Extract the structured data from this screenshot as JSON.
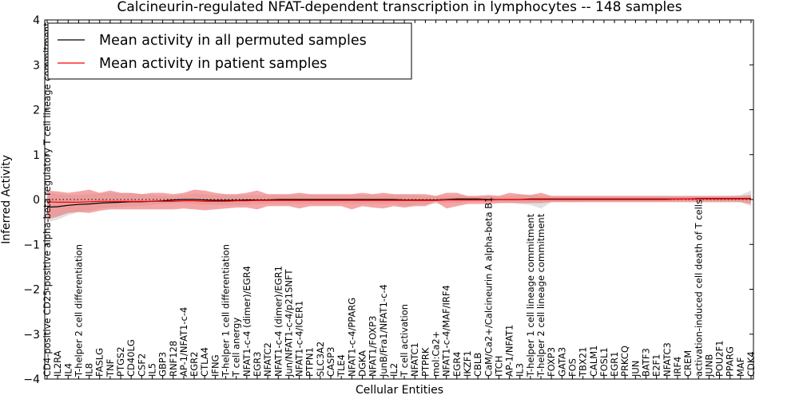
{
  "chart_data": {
    "type": "line",
    "title": "Calcineurin-regulated NFAT-dependent transcription in lymphocytes -- 148 samples",
    "xlabel": "Cellular Entities",
    "ylabel": "Inferred Activity",
    "ylim": [
      -4,
      4
    ],
    "yticks": [
      -4,
      -3,
      -2,
      -1,
      0,
      1,
      2,
      3,
      4
    ],
    "legend_position": "top-left",
    "categories": [
      "CD4-positive CD25-positive alpha-beta regulatory T cell lineage commitment",
      "IL2RA",
      "IL4",
      "T-helper 2 cell differentiation",
      "IL8",
      "FASLG",
      "TNF",
      "PTGS2",
      "CD40LG",
      "CSF2",
      "IL5",
      "GBP3",
      "RNF128",
      "AP-1/NFAT1-c-4",
      "EGR2",
      "CTLA4",
      "IFNG",
      "T-helper 1 cell differentiation",
      "T cell anergy",
      "NFAT1-c-4 (dimer)/EGR4",
      "EGR3",
      "NFATC2",
      "NFAT1-c-4 (dimer)/EGR1",
      "Jun/NFAT1-c-4/p21SNFT",
      "NFAT1-c-4/ICER1",
      "PTPN1",
      "SLC3A2",
      "CASP3",
      "TLE4",
      "NFAT1-c-4/PPARG",
      "DGKA",
      "NFAT1/FOXP3",
      "JunB/Fra1/NFAT1-c-4",
      "IL2",
      "T cell activation",
      "NFATC1",
      "PTPRK",
      "mol:Ca2+",
      "NFAT1-c-4/MAF/IRF4",
      "EGR4",
      "IKZF1",
      "CBLB",
      "CaM/Ca2+/Calcineurin A alpha-beta B1",
      "ITCH",
      "AP-1/NFAT1",
      "IL3",
      "T-helper 1 cell lineage commitment",
      "T-helper 2 cell lineage commitment",
      "FOXP3",
      "GATA3",
      "FOS",
      "TBX21",
      "CALM1",
      "FOSL1",
      "EGR1",
      "PRKCQ",
      "JUN",
      "BATF3",
      "E2F1",
      "NFATC3",
      "IRF4",
      "CREM",
      "activation-induced cell death of T cells",
      "JUNB",
      "POU2F1",
      "PPARG",
      "MAF",
      "CDK4"
    ],
    "series": [
      {
        "name": "Mean activity in all permuted samples",
        "color": "#000000",
        "band_color": "#d9d9d9",
        "values": [
          -0.17,
          -0.16,
          -0.13,
          -0.11,
          -0.1,
          -0.08,
          -0.07,
          -0.06,
          -0.05,
          -0.05,
          -0.04,
          -0.03,
          -0.01,
          0.0,
          0.0,
          -0.01,
          -0.02,
          -0.02,
          -0.02,
          -0.01,
          -0.01,
          -0.01,
          0.0,
          0.0,
          0.0,
          0.0,
          0.0,
          0.0,
          0.0,
          0.0,
          0.0,
          0.0,
          0.0,
          0.0,
          -0.01,
          -0.01,
          -0.01,
          -0.01,
          0.0,
          0.01,
          0.01,
          0.01,
          0.0,
          0.0,
          0.0,
          0.0,
          0.01,
          0.01,
          0.01,
          0.01,
          0.01,
          0.01,
          0.01,
          0.01,
          0.01,
          0.01,
          0.01,
          0.01,
          0.01,
          0.01,
          0.01,
          0.01,
          0.02,
          0.02,
          0.02,
          0.02,
          0.02,
          0.02
        ],
        "lower": [
          -0.5,
          -0.45,
          -0.35,
          -0.28,
          -0.25,
          -0.2,
          -0.18,
          -0.16,
          -0.15,
          -0.14,
          -0.12,
          -0.1,
          -0.08,
          -0.08,
          -0.1,
          -0.12,
          -0.12,
          -0.13,
          -0.13,
          -0.12,
          -0.1,
          -0.1,
          -0.1,
          -0.1,
          -0.1,
          -0.1,
          -0.1,
          -0.1,
          -0.1,
          -0.1,
          -0.1,
          -0.1,
          -0.1,
          -0.1,
          -0.15,
          -0.12,
          -0.1,
          -0.1,
          -0.08,
          -0.08,
          -0.06,
          -0.05,
          -0.06,
          -0.08,
          -0.07,
          -0.1,
          -0.12,
          -0.2,
          -0.06,
          -0.05,
          -0.06,
          -0.05,
          -0.05,
          -0.05,
          -0.05,
          -0.05,
          -0.05,
          -0.05,
          -0.05,
          -0.05,
          -0.05,
          -0.05,
          -0.05,
          -0.05,
          -0.05,
          -0.05,
          -0.06,
          -0.15
        ],
        "upper": [
          0.15,
          0.12,
          0.1,
          0.1,
          0.12,
          0.14,
          0.15,
          0.14,
          0.14,
          0.12,
          0.1,
          0.08,
          0.08,
          0.1,
          0.13,
          0.12,
          0.1,
          0.1,
          0.1,
          0.1,
          0.1,
          0.1,
          0.1,
          0.1,
          0.1,
          0.1,
          0.1,
          0.1,
          0.1,
          0.1,
          0.1,
          0.1,
          0.1,
          0.1,
          0.1,
          0.1,
          0.08,
          0.08,
          0.08,
          0.08,
          0.08,
          0.08,
          0.08,
          0.08,
          0.08,
          0.1,
          0.1,
          0.08,
          0.08,
          0.08,
          0.08,
          0.08,
          0.08,
          0.08,
          0.08,
          0.08,
          0.08,
          0.08,
          0.08,
          0.08,
          0.08,
          0.08,
          0.08,
          0.08,
          0.08,
          0.08,
          0.1,
          0.2
        ]
      },
      {
        "name": "Mean activity in patient samples",
        "color": "#ff0000",
        "band_color": "#f08080",
        "values": [
          -0.05,
          -0.06,
          -0.06,
          -0.06,
          -0.05,
          -0.04,
          -0.04,
          -0.04,
          -0.04,
          -0.04,
          -0.04,
          -0.04,
          -0.04,
          -0.03,
          -0.03,
          -0.04,
          -0.04,
          -0.04,
          -0.03,
          -0.03,
          -0.02,
          -0.02,
          -0.02,
          -0.02,
          -0.02,
          -0.02,
          -0.02,
          -0.02,
          -0.02,
          -0.02,
          -0.02,
          -0.02,
          -0.02,
          -0.02,
          -0.02,
          -0.02,
          -0.02,
          -0.02,
          -0.01,
          -0.01,
          -0.01,
          -0.01,
          -0.01,
          0.0,
          0.0,
          0.0,
          0.0,
          0.0,
          0.0,
          0.0,
          0.0,
          0.0,
          0.0,
          0.0,
          0.0,
          0.0,
          0.0,
          0.0,
          0.0,
          0.0,
          0.01,
          0.01,
          0.01,
          0.01,
          0.01,
          0.01,
          0.01,
          0.01
        ],
        "lower": [
          -0.45,
          -0.38,
          -0.3,
          -0.28,
          -0.3,
          -0.25,
          -0.22,
          -0.22,
          -0.22,
          -0.22,
          -0.22,
          -0.22,
          -0.22,
          -0.2,
          -0.22,
          -0.24,
          -0.22,
          -0.2,
          -0.18,
          -0.18,
          -0.22,
          -0.15,
          -0.15,
          -0.15,
          -0.2,
          -0.15,
          -0.15,
          -0.15,
          -0.15,
          -0.22,
          -0.15,
          -0.18,
          -0.2,
          -0.15,
          -0.18,
          -0.15,
          -0.15,
          -0.05,
          -0.2,
          -0.15,
          -0.1,
          -0.1,
          -0.1,
          -0.08,
          -0.08,
          -0.08,
          -0.08,
          -0.08,
          -0.06,
          -0.06,
          -0.06,
          -0.06,
          -0.06,
          -0.06,
          -0.06,
          -0.06,
          -0.06,
          -0.06,
          -0.06,
          -0.06,
          -0.06,
          -0.06,
          -0.06,
          -0.06,
          -0.06,
          -0.06,
          -0.06,
          -0.1
        ],
        "upper": [
          0.2,
          0.18,
          0.15,
          0.18,
          0.22,
          0.15,
          0.2,
          0.15,
          0.15,
          0.12,
          0.15,
          0.15,
          0.12,
          0.15,
          0.22,
          0.2,
          0.15,
          0.12,
          0.12,
          0.15,
          0.2,
          0.12,
          0.12,
          0.12,
          0.15,
          0.12,
          0.12,
          0.12,
          0.12,
          0.12,
          0.15,
          0.12,
          0.15,
          0.12,
          0.12,
          0.12,
          0.12,
          0.08,
          0.15,
          0.15,
          0.08,
          0.08,
          0.1,
          0.08,
          0.15,
          0.12,
          0.1,
          0.15,
          0.08,
          0.08,
          0.08,
          0.08,
          0.08,
          0.08,
          0.08,
          0.08,
          0.08,
          0.08,
          0.08,
          0.08,
          0.08,
          0.08,
          0.08,
          0.08,
          0.08,
          0.08,
          0.08,
          0.1
        ]
      }
    ]
  }
}
